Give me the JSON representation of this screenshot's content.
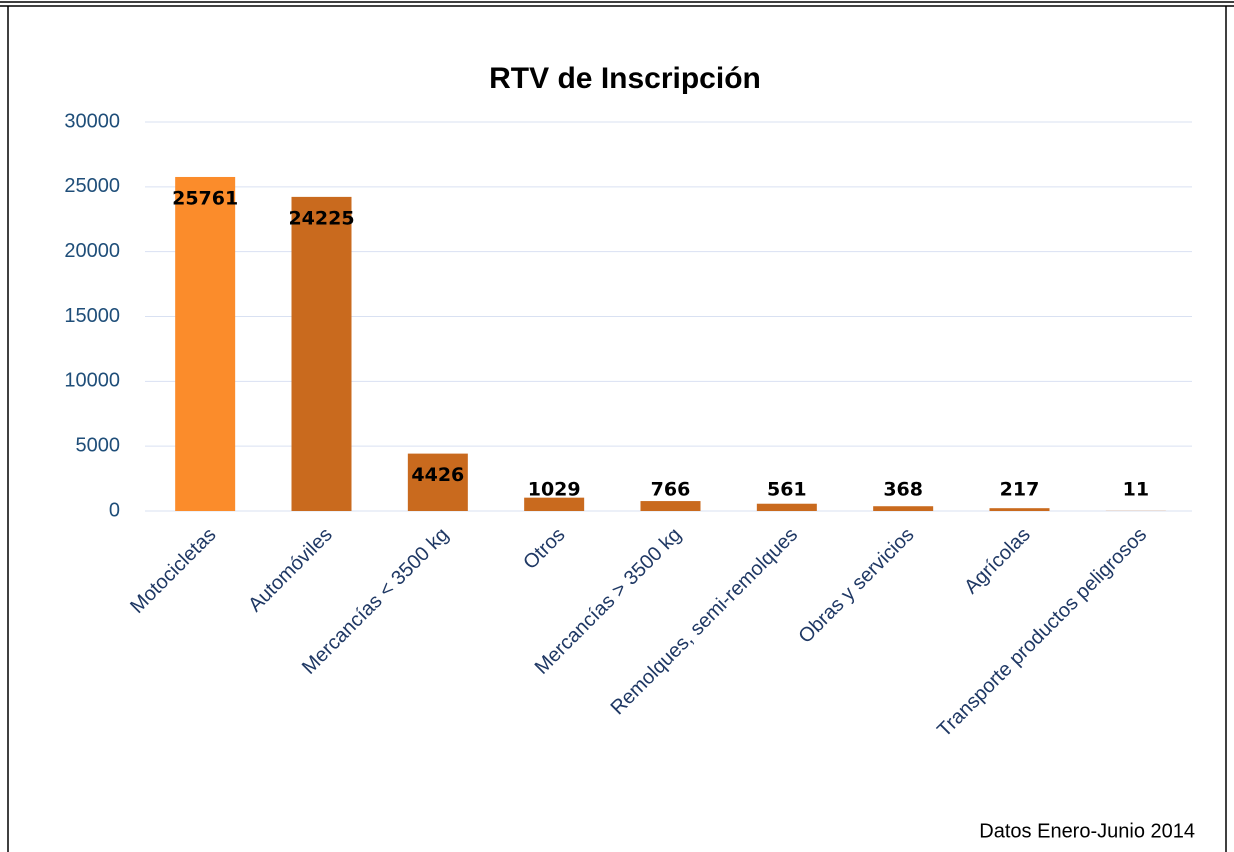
{
  "chart_data": {
    "type": "bar",
    "title": "RTV de Inscripción",
    "categories": [
      "Motocicletas",
      "Automóviles",
      "Mercancías < 3500 kg",
      "Otros",
      "Mercancías > 3500 kg",
      "Remolques, semi-remolques",
      "Obras y servicios",
      "Agrícolas",
      "Transporte productos peligrosos"
    ],
    "values": [
      25761,
      24225,
      4426,
      1029,
      766,
      561,
      368,
      217,
      11
    ],
    "colors": [
      "#fb8c2b",
      "#c96a1e",
      "#c96a1e",
      "#c96a1e",
      "#c96a1e",
      "#c96a1e",
      "#c96a1e",
      "#c96a1e",
      "#c96a1e"
    ],
    "ylim": [
      0,
      30000
    ],
    "yticks": [
      0,
      5000,
      10000,
      15000,
      20000,
      25000,
      30000
    ],
    "grid": true,
    "note": "Datos Enero-Junio 2014"
  }
}
